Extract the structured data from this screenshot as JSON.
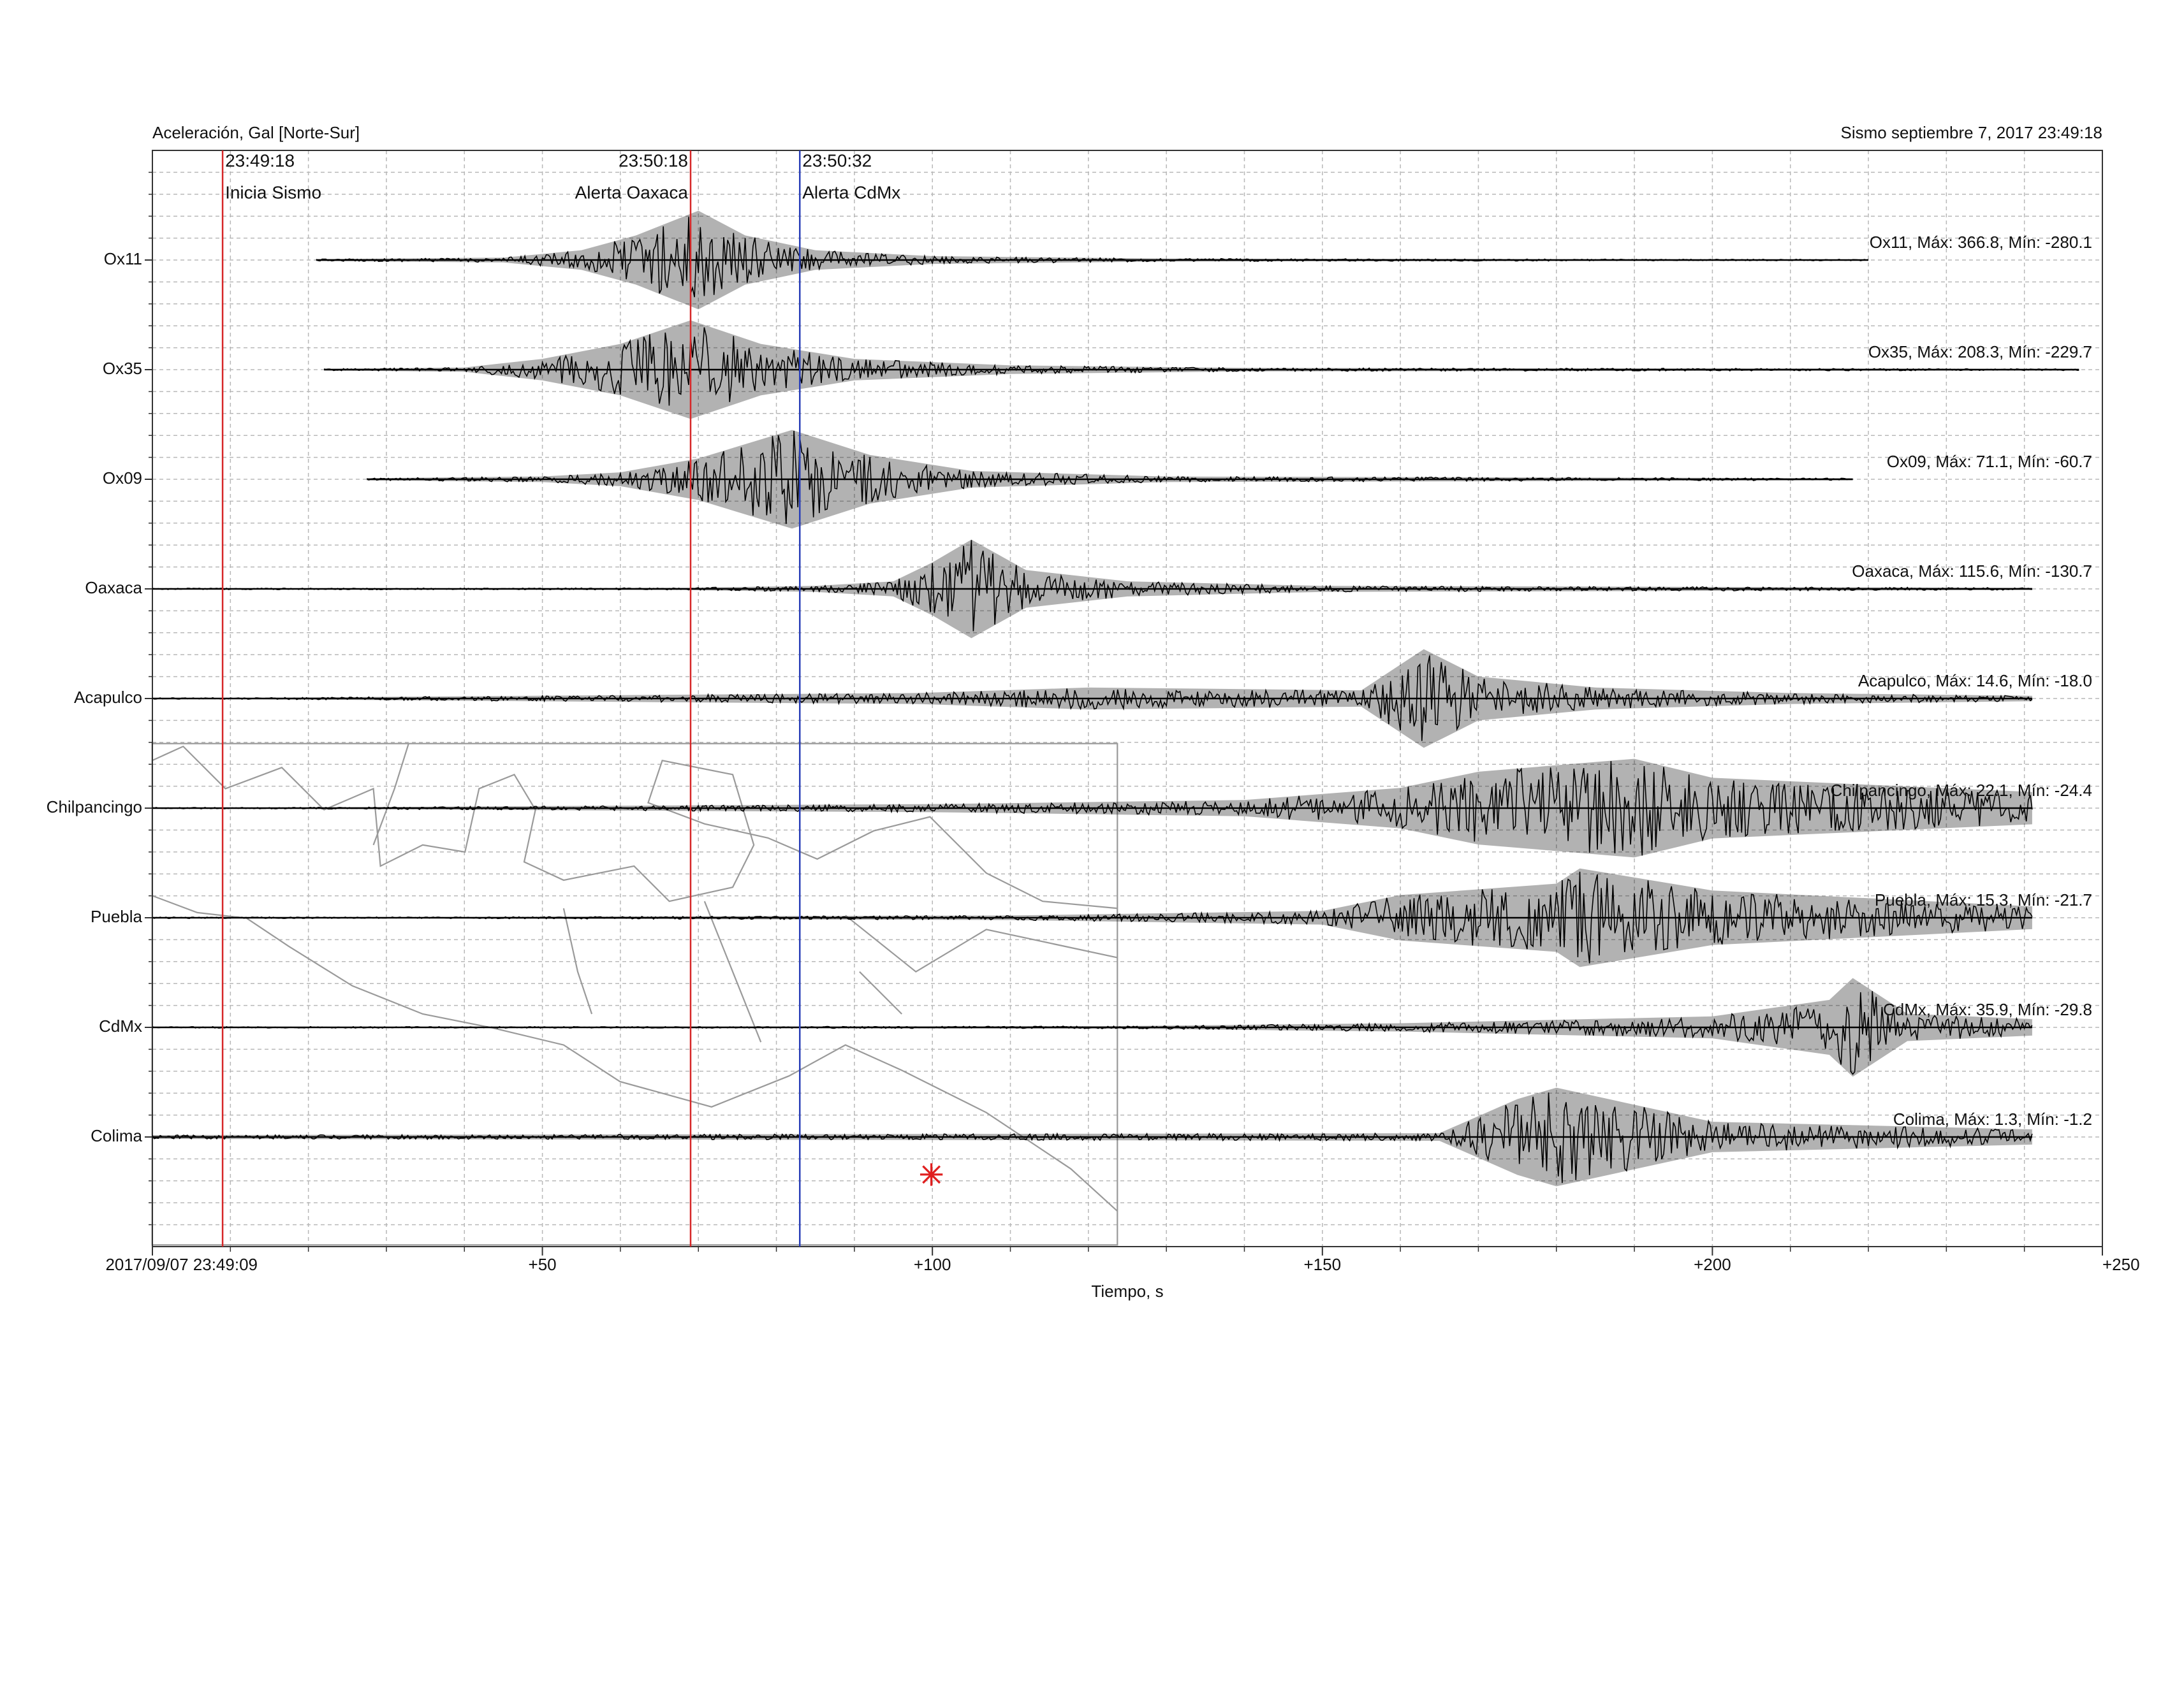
{
  "chart_data": {
    "type": "seismogram",
    "title": "Aceleración, Gal [Norte-Sur]",
    "subtitle": "Sismo septiembre 7, 2017 23:49:18",
    "x_label": "Tiempo, s",
    "xlim": [
      0,
      250
    ],
    "xticks": [
      {
        "value": 0,
        "label": "2017/09/07 23:49:09"
      },
      {
        "value": 50,
        "label": "+50"
      },
      {
        "value": 100,
        "label": "+100"
      },
      {
        "value": 150,
        "label": "+150"
      },
      {
        "value": 200,
        "label": "+200"
      },
      {
        "value": 250,
        "label": "+250"
      }
    ],
    "grid": true,
    "grid_step": 10,
    "color": "#000000",
    "events": [
      {
        "value": 9,
        "time": "23:49:18",
        "label": "Inicia Sismo",
        "color": "#d62728"
      },
      {
        "value": 69,
        "time": "23:50:18",
        "label": "Alerta Oaxaca",
        "color": "#d62728"
      },
      {
        "value": 83,
        "time": "23:50:32",
        "label": "Alerta CdMx",
        "color": "#2a3fb8"
      }
    ],
    "traces": [
      {
        "name": "Ox11",
        "label": "Ox11, Máx: 366.8, Mín: -280.1",
        "time": [
          21,
          45,
          55,
          62,
          70,
          76,
          85,
          100,
          130,
          220
        ],
        "amplitude": [
          7,
          18,
          73,
          183,
          366.8,
          183,
          73,
          29,
          11,
          4
        ]
      },
      {
        "name": "Ox35",
        "label": "Ox35, Máx: 208.3, Mín: -229.7",
        "time": [
          22,
          40,
          50,
          60,
          69,
          78,
          90,
          110,
          140,
          247
        ],
        "amplitude": [
          4,
          10,
          50,
          120,
          229.7,
          120,
          50,
          20,
          8,
          4
        ]
      },
      {
        "name": "Ox09",
        "label": "Ox09, Máx: 71.1, Mín: -60.7",
        "time": [
          27.5,
          50,
          60,
          70,
          82,
          92,
          105,
          130,
          218
        ],
        "amplitude": [
          1.5,
          4,
          10,
          30,
          71.1,
          35,
          12,
          4,
          1.5
        ]
      },
      {
        "name": "Oaxaca",
        "label": "Oaxaca, Máx: 115.6, Mín: -130.7",
        "time": [
          0,
          68,
          85,
          95,
          100,
          105,
          112,
          125,
          150,
          241
        ],
        "amplitude": [
          0,
          3,
          8,
          20,
          70,
          130.7,
          50,
          20,
          8,
          3
        ]
      },
      {
        "name": "Acapulco",
        "label": "Acapulco, Máx: 14.6, Mín: -18.0",
        "time": [
          0,
          98,
          120,
          155,
          163,
          170,
          185,
          210,
          241
        ],
        "amplitude": [
          0,
          2,
          4,
          3,
          18,
          8,
          4,
          2,
          1
        ]
      },
      {
        "name": "Chilpancingo",
        "label": "Chilpancingo, Máx: 22.1, Mín: -24.4",
        "time": [
          0,
          100,
          140,
          160,
          170,
          190,
          200,
          241
        ],
        "amplitude": [
          0,
          2,
          4,
          10,
          18,
          24.4,
          15,
          8
        ]
      },
      {
        "name": "Puebla",
        "label": "Puebla, Máx: 15.3, Mín: -21.7",
        "time": [
          0,
          110,
          150,
          160,
          180,
          183,
          200,
          241
        ],
        "amplitude": [
          0,
          1,
          3,
          10,
          15,
          21.7,
          12,
          5
        ]
      },
      {
        "name": "CdMx",
        "label": "CdMx, Máx: 35.9, Mín: -29.8",
        "time": [
          0,
          125,
          160,
          200,
          215,
          218,
          225,
          241
        ],
        "amplitude": [
          0,
          1,
          3,
          8,
          20,
          35.9,
          10,
          6
        ]
      },
      {
        "name": "Colima",
        "label": "Colima, Máx: 1.3, Mín: -1.2",
        "time": [
          0,
          165,
          175,
          180,
          200,
          241
        ],
        "amplitude": [
          0.05,
          0.1,
          1,
          1.3,
          0.4,
          0.2
        ]
      }
    ]
  }
}
